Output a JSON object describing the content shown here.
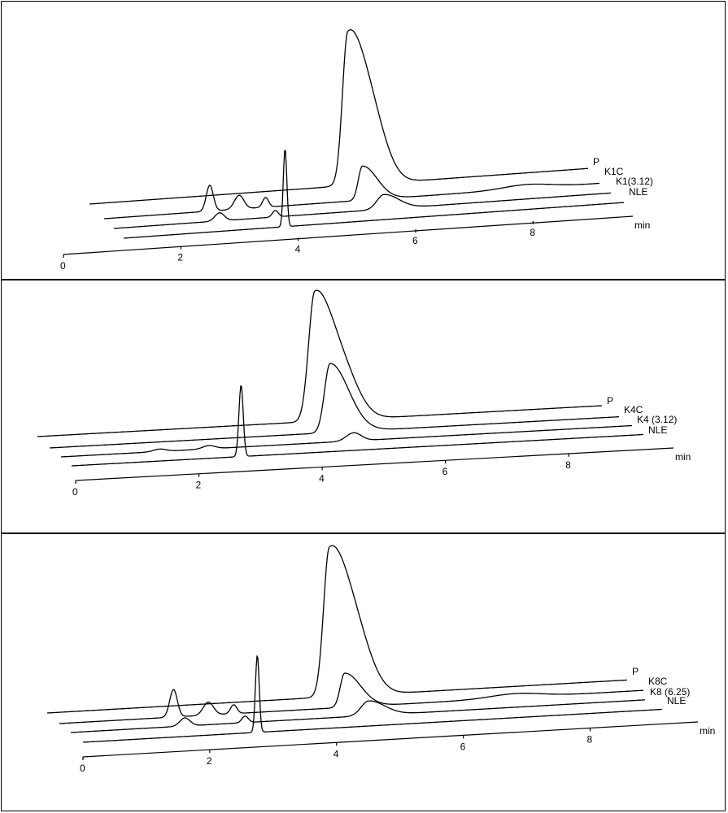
{
  "chart_data": [
    {
      "type": "line",
      "xlabel": "min",
      "x_ticks": [
        "0",
        "2",
        "4",
        "6",
        "8"
      ],
      "xlim": [
        0,
        9.7
      ],
      "series": [
        {
          "name": "P",
          "peaks": [
            {
              "x": 4.4,
              "h": 180,
              "w": 0.09,
              "tail": 0.3
            },
            {
              "x": 4.85,
              "h": 50,
              "w": 0.25
            }
          ]
        },
        {
          "name": "K1C",
          "peaks": [
            {
              "x": 1.8,
              "h": 32,
              "w": 0.06
            },
            {
              "x": 2.3,
              "h": 17,
              "w": 0.08
            },
            {
              "x": 2.75,
              "h": 12,
              "w": 0.05
            },
            {
              "x": 4.4,
              "h": 42,
              "w": 0.07,
              "tail": 0.25
            },
            {
              "x": 7.2,
              "h": 5,
              "w": 0.4
            }
          ]
        },
        {
          "name": "K1(3.12)",
          "peaks": [
            {
              "x": 1.8,
              "h": 10,
              "w": 0.08
            },
            {
              "x": 2.75,
              "h": 8,
              "w": 0.05
            },
            {
              "x": 4.6,
              "h": 18,
              "w": 0.12,
              "tail": 0.25
            }
          ]
        },
        {
          "name": "NLE",
          "peaks": [
            {
              "x": 2.75,
              "h": 96,
              "w": 0.03
            }
          ]
        }
      ]
    },
    {
      "type": "line",
      "xlabel": "min",
      "x_ticks": [
        "0",
        "2",
        "4",
        "6",
        "8"
      ],
      "xlim": [
        0,
        9.7
      ],
      "series": [
        {
          "name": "P",
          "peaks": [
            {
              "x": 4.5,
              "h": 155,
              "w": 0.1,
              "tail": 0.3
            },
            {
              "x": 5.0,
              "h": 40,
              "w": 0.25
            }
          ]
        },
        {
          "name": "K4C",
          "peaks": [
            {
              "x": 4.55,
              "h": 85,
              "w": 0.09,
              "tail": 0.3
            }
          ]
        },
        {
          "name": "K4 (3.12)",
          "peaks": [
            {
              "x": 1.6,
              "h": 3,
              "w": 0.1
            },
            {
              "x": 2.4,
              "h": 4,
              "w": 0.1
            },
            {
              "x": 4.75,
              "h": 10,
              "w": 0.12
            }
          ]
        },
        {
          "name": "NLE",
          "peaks": [
            {
              "x": 2.75,
              "h": 88,
              "w": 0.035
            }
          ]
        }
      ]
    },
    {
      "type": "line",
      "xlabel": "min",
      "x_ticks": [
        "0",
        "2",
        "4",
        "6",
        "8"
      ],
      "xlim": [
        0,
        9.7
      ],
      "series": [
        {
          "name": "P",
          "peaks": [
            {
              "x": 4.45,
              "h": 175,
              "w": 0.09,
              "tail": 0.3
            },
            {
              "x": 4.9,
              "h": 48,
              "w": 0.25
            }
          ]
        },
        {
          "name": "K8C",
          "peaks": [
            {
              "x": 1.8,
              "h": 34,
              "w": 0.06
            },
            {
              "x": 2.35,
              "h": 16,
              "w": 0.08
            },
            {
              "x": 2.75,
              "h": 11,
              "w": 0.05
            },
            {
              "x": 4.5,
              "h": 42,
              "w": 0.07,
              "tail": 0.25
            },
            {
              "x": 7.2,
              "h": 5,
              "w": 0.4
            }
          ]
        },
        {
          "name": "K8 (6.25)",
          "peaks": [
            {
              "x": 1.8,
              "h": 10,
              "w": 0.08
            },
            {
              "x": 2.75,
              "h": 8,
              "w": 0.05
            },
            {
              "x": 4.7,
              "h": 18,
              "w": 0.12,
              "tail": 0.25
            }
          ]
        },
        {
          "name": "NLE",
          "peaks": [
            {
              "x": 2.75,
              "h": 95,
              "w": 0.03
            }
          ]
        }
      ]
    }
  ]
}
